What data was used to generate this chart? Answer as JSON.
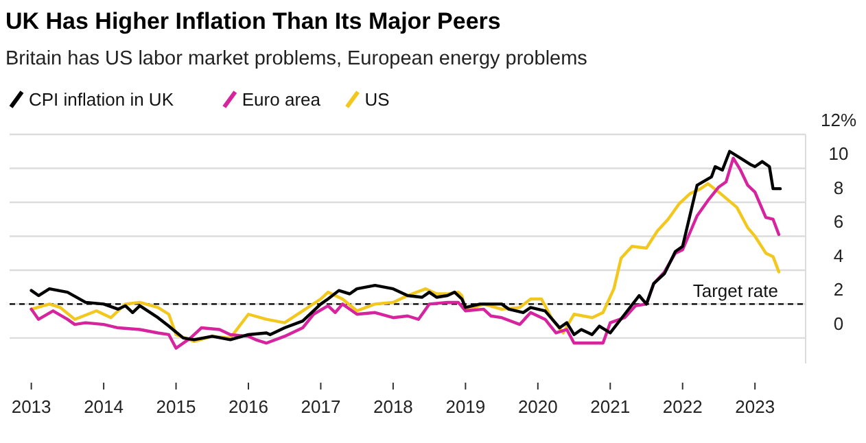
{
  "chart_data": {
    "type": "line",
    "title": "UK Has Higher Inflation Than Its Major Peers",
    "subtitle": "Britain has US labor market problems, European energy problems",
    "legend": "top left",
    "grid": "y",
    "line_style": "solid",
    "xlim": [
      2012.7,
      2023.7
    ],
    "xticks": [
      2013,
      2014,
      2015,
      2016,
      2017,
      2018,
      2019,
      2020,
      2021,
      2022,
      2023
    ],
    "ylim": [
      -1.5,
      12
    ],
    "yticks": [
      0,
      2,
      4,
      6,
      8,
      10,
      {
        "value": 12,
        "label": "12%"
      }
    ],
    "ref_lines": [
      {
        "axis": "y",
        "value": 2,
        "label": "Target rate",
        "color": "#000000",
        "line_style": "dashed"
      }
    ],
    "series": [
      {
        "name": "CPI inflation in UK",
        "color": "#000000",
        "x": [
          2013,
          2013.1,
          2013.25,
          2013.5,
          2013.75,
          2014,
          2014.2,
          2014.3,
          2014.4,
          2014.5,
          2014.75,
          2014.9,
          2015.1,
          2015.25,
          2015.5,
          2015.75,
          2016,
          2016.25,
          2016.3,
          2016.5,
          2016.75,
          2017,
          2017.1,
          2017.25,
          2017.4,
          2017.5,
          2017.75,
          2018,
          2018.2,
          2018.4,
          2018.5,
          2018.6,
          2018.75,
          2018.85,
          2018.95,
          2019,
          2019.2,
          2019.4,
          2019.5,
          2019.6,
          2019.8,
          2019.9,
          2020.1,
          2020.3,
          2020.4,
          2020.5,
          2020.6,
          2020.75,
          2020.85,
          2021,
          2021.2,
          2021.4,
          2021.5,
          2021.6,
          2021.75,
          2021.9,
          2022,
          2022.2,
          2022.4,
          2022.45,
          2022.55,
          2022.65,
          2022.8,
          2022.95,
          2023,
          2023.1,
          2023.2,
          2023.25,
          2023.35
        ],
        "values": [
          2.8,
          2.5,
          2.9,
          2.7,
          2.1,
          2.0,
          1.7,
          1.9,
          1.5,
          1.9,
          1.2,
          0.7,
          0.0,
          -0.1,
          0.1,
          -0.1,
          0.2,
          0.3,
          0.2,
          0.6,
          1.0,
          2.0,
          2.3,
          2.8,
          2.6,
          2.9,
          3.1,
          2.9,
          2.5,
          2.4,
          2.7,
          2.4,
          2.5,
          2.7,
          2.3,
          1.8,
          2.0,
          2.0,
          2.0,
          1.7,
          1.5,
          1.8,
          1.6,
          0.6,
          0.9,
          0.2,
          0.5,
          0.2,
          0.7,
          0.3,
          1.4,
          2.5,
          2.0,
          3.2,
          3.8,
          5.1,
          5.4,
          9.0,
          9.5,
          10.1,
          9.9,
          11.0,
          10.6,
          10.2,
          10.1,
          10.4,
          10.1,
          8.8,
          8.8
        ]
      },
      {
        "name": "Euro area",
        "color": "#d6249f",
        "x": [
          2013,
          2013.1,
          2013.3,
          2013.5,
          2013.6,
          2013.75,
          2014,
          2014.2,
          2014.5,
          2014.75,
          2014.9,
          2015,
          2015.2,
          2015.35,
          2015.6,
          2015.75,
          2016,
          2016.1,
          2016.25,
          2016.5,
          2016.75,
          2016.9,
          2017.1,
          2017.2,
          2017.3,
          2017.5,
          2017.75,
          2018,
          2018.2,
          2018.35,
          2018.5,
          2018.75,
          2018.9,
          2019,
          2019.25,
          2019.35,
          2019.5,
          2019.75,
          2019.9,
          2020.1,
          2020.25,
          2020.4,
          2020.5,
          2020.75,
          2020.9,
          2021,
          2021.2,
          2021.35,
          2021.5,
          2021.6,
          2021.75,
          2021.9,
          2022,
          2022.2,
          2022.35,
          2022.5,
          2022.6,
          2022.7,
          2022.8,
          2022.9,
          2023,
          2023.15,
          2023.25,
          2023.33
        ],
        "values": [
          1.7,
          1.1,
          1.6,
          1.1,
          0.8,
          0.9,
          0.8,
          0.6,
          0.5,
          0.3,
          0.2,
          -0.6,
          0.0,
          0.6,
          0.5,
          0.2,
          0.1,
          -0.1,
          -0.3,
          0.1,
          0.6,
          1.4,
          1.9,
          1.5,
          2.0,
          1.4,
          1.5,
          1.2,
          1.3,
          1.1,
          2.0,
          2.1,
          2.1,
          1.6,
          1.7,
          1.3,
          1.2,
          0.8,
          1.5,
          1.1,
          0.3,
          0.5,
          -0.3,
          -0.3,
          -0.3,
          0.9,
          1.2,
          1.9,
          2.0,
          3.2,
          3.9,
          5.0,
          5.2,
          7.2,
          8.1,
          8.9,
          9.2,
          10.6,
          9.9,
          9.0,
          8.6,
          7.1,
          7.0,
          6.1
        ]
      },
      {
        "name": "US",
        "color": "#f2c81f",
        "x": [
          2013,
          2013.25,
          2013.4,
          2013.6,
          2013.9,
          2014.1,
          2014.3,
          2014.5,
          2014.75,
          2014.9,
          2015,
          2015.25,
          2015.5,
          2015.75,
          2016,
          2016.25,
          2016.5,
          2016.75,
          2017,
          2017.1,
          2017.3,
          2017.5,
          2017.75,
          2018,
          2018.2,
          2018.45,
          2018.6,
          2018.75,
          2018.9,
          2018.95,
          2019,
          2019.25,
          2019.5,
          2019.75,
          2019.9,
          2020.05,
          2020.2,
          2020.35,
          2020.5,
          2020.75,
          2020.9,
          2021.05,
          2021.15,
          2021.3,
          2021.5,
          2021.65,
          2021.8,
          2021.95,
          2022.1,
          2022.25,
          2022.35,
          2022.5,
          2022.75,
          2022.9,
          2023,
          2023.15,
          2023.25,
          2023.33
        ],
        "values": [
          1.7,
          2.0,
          1.8,
          1.1,
          1.6,
          1.2,
          2.0,
          2.1,
          1.8,
          1.4,
          0.2,
          -0.2,
          0.1,
          0.0,
          1.4,
          1.1,
          0.9,
          1.6,
          2.3,
          2.7,
          2.3,
          1.6,
          2.0,
          2.1,
          2.5,
          2.9,
          2.6,
          2.6,
          2.7,
          2.5,
          1.6,
          2.0,
          1.7,
          1.8,
          2.3,
          2.3,
          1.1,
          0.3,
          1.4,
          1.2,
          1.5,
          2.9,
          4.7,
          5.4,
          5.3,
          6.3,
          7.0,
          7.9,
          8.5,
          8.8,
          9.1,
          8.6,
          7.7,
          6.5,
          6.0,
          5.0,
          4.8,
          3.9
        ]
      }
    ]
  }
}
